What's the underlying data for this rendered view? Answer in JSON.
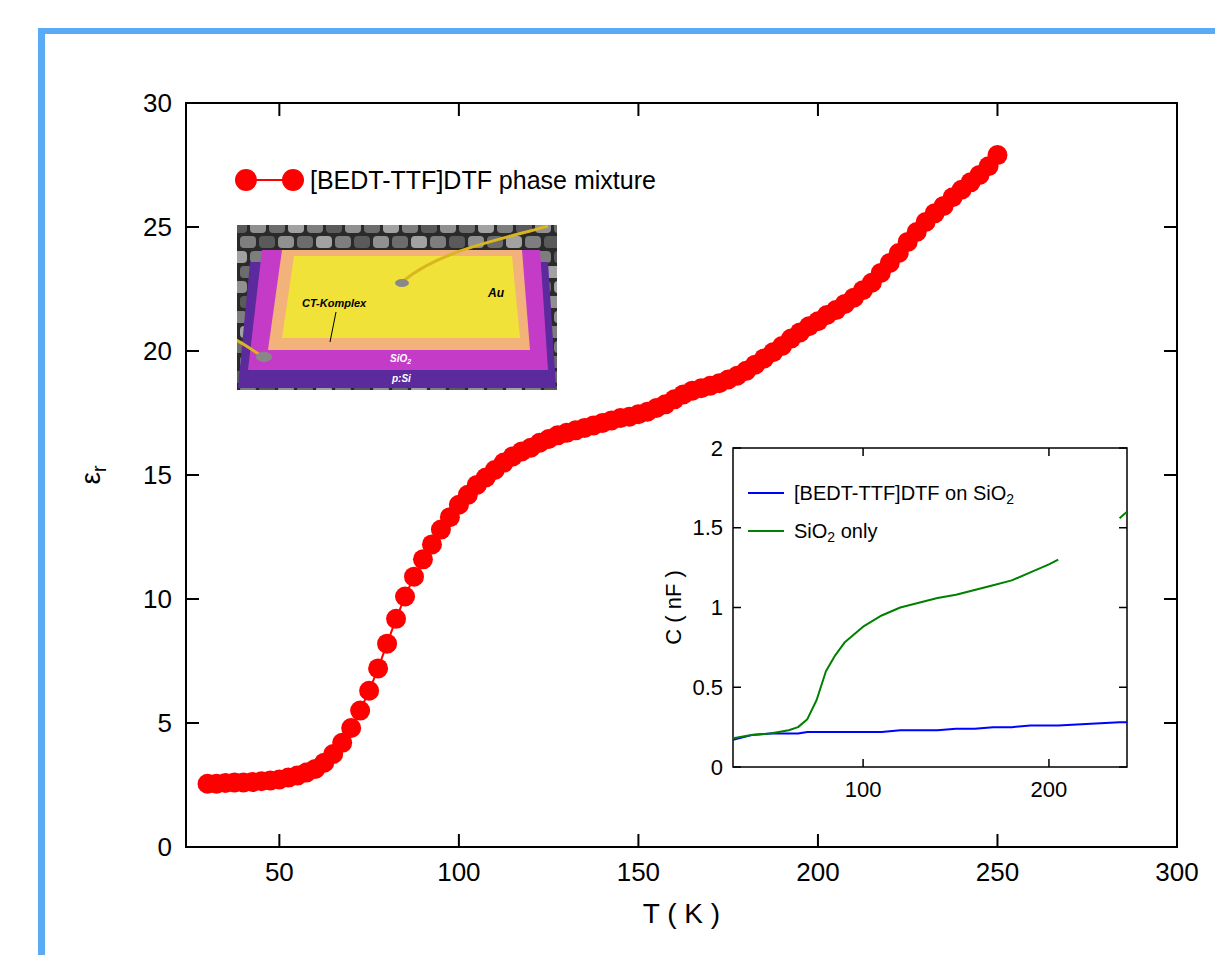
{
  "chart_data": [
    {
      "type": "line",
      "x_label": "T ( K )",
      "y_label": "εr",
      "x": [
        30,
        32.5,
        35,
        37.5,
        40,
        42.5,
        45,
        47.5,
        50,
        52.5,
        55,
        57.5,
        60,
        62.5,
        65,
        67.5,
        70,
        72.5,
        75,
        77.5,
        80,
        82.5,
        85,
        87.5,
        90,
        92.5,
        95,
        97.5,
        100,
        102.5,
        105,
        107.5,
        110,
        112.5,
        115,
        117.5,
        120,
        122.5,
        125,
        127.5,
        130,
        132.5,
        135,
        137.5,
        140,
        142.5,
        145,
        147.5,
        150,
        152.5,
        155,
        157.5,
        160,
        162.5,
        165,
        167.5,
        170,
        172.5,
        175,
        177.5,
        180,
        182.5,
        185,
        187.5,
        190,
        192.5,
        195,
        197.5,
        200,
        202.5,
        205,
        207.5,
        210,
        212.5,
        215,
        217.5,
        220,
        222.5,
        225,
        227.5,
        230,
        232.5,
        235,
        237.5,
        240,
        242.5,
        245,
        247.5,
        250
      ],
      "series": [
        {
          "name": "[BEDT-TTF]DTF phase mixture",
          "color": "#ff0000",
          "marker": "circle",
          "values": [
            2.55,
            2.55,
            2.58,
            2.6,
            2.6,
            2.62,
            2.65,
            2.68,
            2.72,
            2.8,
            2.88,
            3.0,
            3.15,
            3.4,
            3.75,
            4.2,
            4.8,
            5.5,
            6.3,
            7.2,
            8.2,
            9.2,
            10.1,
            10.9,
            11.6,
            12.2,
            12.8,
            13.3,
            13.8,
            14.2,
            14.6,
            14.9,
            15.2,
            15.5,
            15.75,
            15.95,
            16.1,
            16.3,
            16.45,
            16.6,
            16.7,
            16.8,
            16.9,
            17.0,
            17.1,
            17.2,
            17.3,
            17.35,
            17.45,
            17.55,
            17.7,
            17.85,
            18.05,
            18.25,
            18.4,
            18.5,
            18.6,
            18.7,
            18.85,
            19.0,
            19.2,
            19.45,
            19.7,
            19.95,
            20.2,
            20.5,
            20.75,
            21.0,
            21.2,
            21.45,
            21.65,
            21.9,
            22.15,
            22.45,
            22.75,
            23.15,
            23.55,
            23.95,
            24.4,
            24.8,
            25.2,
            25.55,
            25.85,
            26.2,
            26.5,
            26.8,
            27.1,
            27.45,
            27.9
          ]
        }
      ],
      "xlim": [
        24,
        300
      ],
      "xticks": [
        50,
        100,
        150,
        200,
        250,
        300
      ],
      "ylim": [
        0,
        30
      ],
      "yticks": [
        0,
        5,
        10,
        15,
        20,
        25,
        30
      ],
      "legend": "upper left",
      "annotations": [
        "CT-Komplex",
        "Au",
        "SiO2",
        "p:Si"
      ]
    },
    {
      "type": "line",
      "y_label": "C ( nF )",
      "x": [
        30,
        40,
        50,
        60,
        65,
        70,
        75,
        80,
        85,
        90,
        100,
        110,
        120,
        130,
        140,
        150,
        160,
        170,
        180,
        190,
        200,
        205,
        220,
        238,
        242
      ],
      "series": [
        {
          "name": "[BEDT-TTF]DTF on SiO2",
          "color": "#0000ff",
          "values": [
            0.17,
            0.2,
            0.21,
            0.21,
            0.21,
            0.22,
            0.22,
            0.22,
            0.22,
            0.22,
            0.22,
            0.22,
            0.23,
            0.23,
            0.23,
            0.24,
            0.24,
            0.25,
            0.25,
            0.26,
            0.26,
            0.26,
            0.27,
            0.28,
            0.28
          ]
        },
        {
          "name": "SiO2 only",
          "color": "#008000",
          "values": [
            0.18,
            0.2,
            0.21,
            0.23,
            0.25,
            0.3,
            0.42,
            0.6,
            0.7,
            0.78,
            0.88,
            0.95,
            1.0,
            1.03,
            1.06,
            1.08,
            1.11,
            1.14,
            1.17,
            1.22,
            1.27,
            1.3,
            null,
            1.56,
            1.6
          ]
        }
      ],
      "xlim": [
        30,
        242
      ],
      "xticks": [
        100,
        200
      ],
      "ylim": [
        0,
        2
      ],
      "yticks": [
        0,
        0.5,
        1,
        1.5,
        2
      ],
      "legend": "upper left"
    }
  ]
}
